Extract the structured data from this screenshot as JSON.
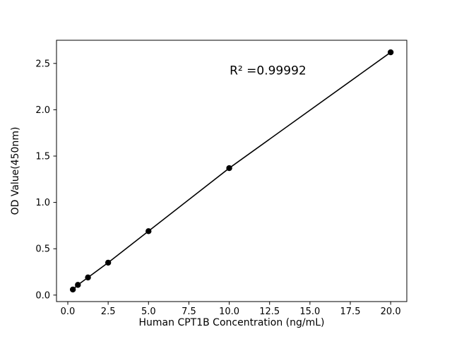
{
  "chart_data": {
    "type": "scatter",
    "title": "",
    "xlabel": "Human CPT1B Concentration (ng/mL)",
    "ylabel": "OD Value(450nm)",
    "x": [
      0.313,
      0.625,
      1.25,
      2.5,
      5,
      10,
      20
    ],
    "y": [
      0.06,
      0.11,
      0.19,
      0.35,
      0.69,
      1.37,
      2.62
    ],
    "xlim": [
      -0.7,
      21.0
    ],
    "ylim": [
      -0.07,
      2.75
    ],
    "xtick_values": [
      0.0,
      2.5,
      5.0,
      7.5,
      10.0,
      12.5,
      15.0,
      17.5,
      20.0
    ],
    "xtick_labels": [
      "0.0",
      "2.5",
      "5.0",
      "7.5",
      "10.0",
      "12.5",
      "15.0",
      "17.5",
      "20.0"
    ],
    "ytick_values": [
      0.0,
      0.5,
      1.0,
      1.5,
      2.0,
      2.5
    ],
    "ytick_labels": [
      "0.0",
      "0.5",
      "1.0",
      "1.5",
      "2.0",
      "2.5"
    ],
    "annotation": {
      "text": "R² =0.99992",
      "x": 12.4,
      "y": 2.42
    },
    "r_squared": 0.99992,
    "line_color": "#000000",
    "marker_color": "#000000",
    "background_color": "#ffffff",
    "grid": false,
    "legend": null
  }
}
